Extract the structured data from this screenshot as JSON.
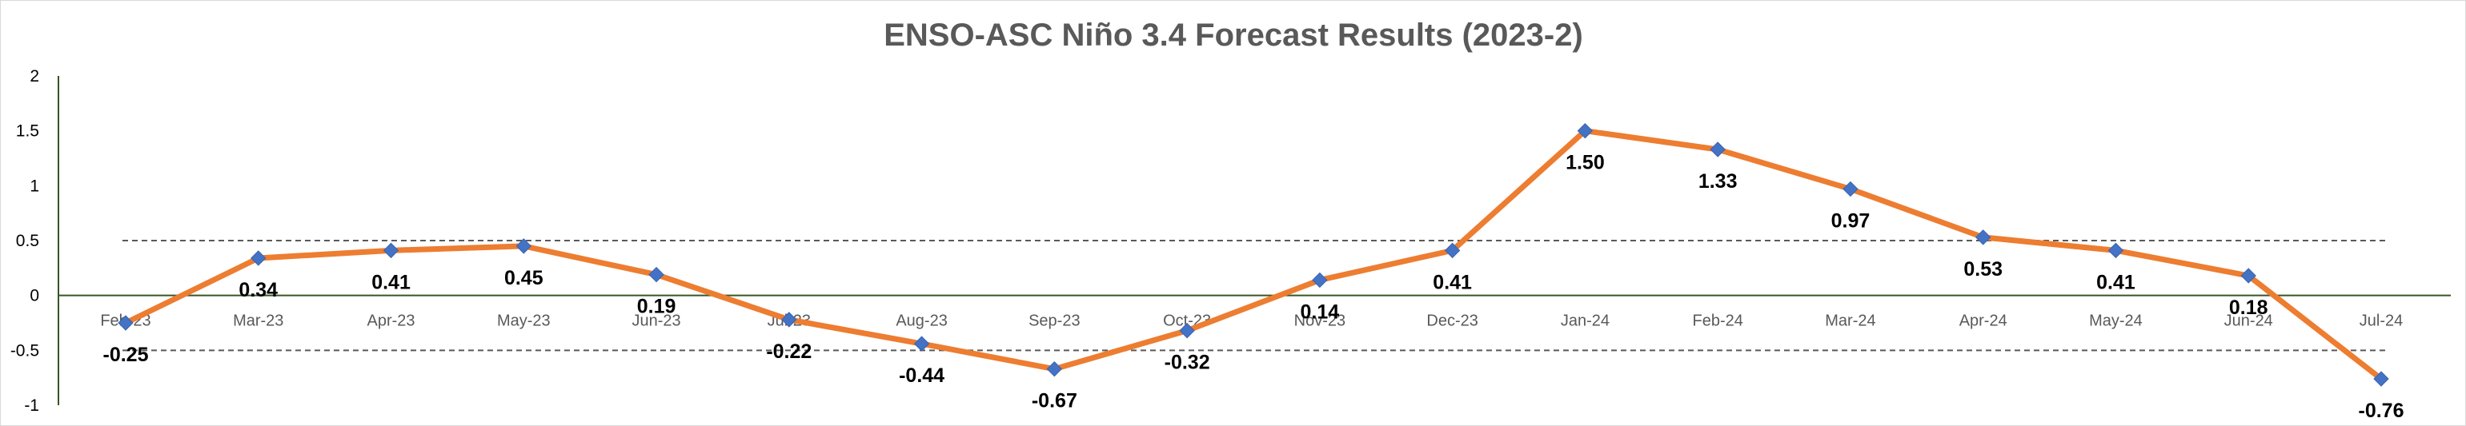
{
  "chart_data": {
    "type": "line",
    "title": "ENSO-ASC Niño 3.4 Forecast Results (2023-2)",
    "xlabel": "",
    "ylabel": "",
    "categories": [
      "Feb-23",
      "Mar-23",
      "Apr-23",
      "May-23",
      "Jun-23",
      "Jul-23",
      "Aug-23",
      "Sep-23",
      "Oct-23",
      "Nov-23",
      "Dec-23",
      "Jan-24",
      "Feb-24",
      "Mar-24",
      "Apr-24",
      "May-24",
      "Jun-24",
      "Jul-24"
    ],
    "series": [
      {
        "values": [
          -0.25,
          0.34,
          0.41,
          0.45,
          0.19,
          -0.22,
          -0.44,
          -0.67,
          -0.32,
          0.14,
          0.41,
          1.5,
          1.33,
          0.97,
          0.53,
          0.41,
          0.18,
          -0.76
        ],
        "data_labels": [
          "-0.25",
          "0.34",
          "0.41",
          "0.45",
          "0.19",
          "-0.22",
          "-0.44",
          "-0.67",
          "-0.32",
          "0.14",
          "0.41",
          "1.50",
          "1.33",
          "0.97",
          "0.53",
          "0.41",
          "0.18",
          "-0.76"
        ],
        "line_color": "#ed7d31",
        "marker_color": "#4472c4",
        "marker": "diamond"
      }
    ],
    "ylim": [
      -1,
      2
    ],
    "yticks": [
      -1,
      -0.5,
      0,
      0.5,
      1,
      1.5,
      2
    ],
    "ytick_labels": [
      "-1",
      "-0.5",
      "0",
      "0.5",
      "1",
      "1.5",
      "2"
    ],
    "reference_lines": [
      0.5,
      -0.5
    ],
    "axis_color": "#375623",
    "reference_line_color": "#595959",
    "grid": false,
    "legend": "none"
  }
}
